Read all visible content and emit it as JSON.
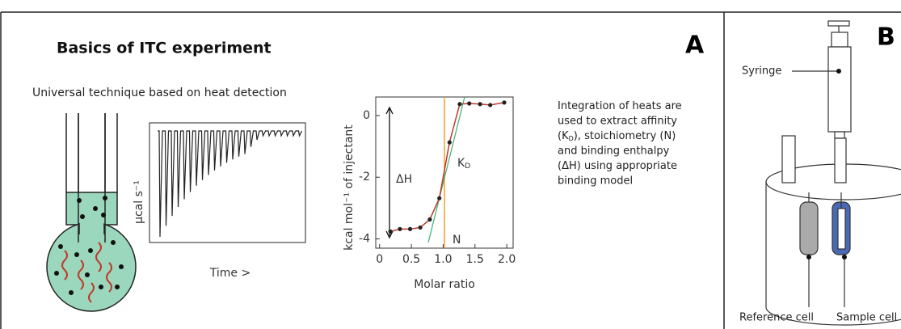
{
  "panel_a": {
    "title": "Basics of ITC experiment",
    "letter": "A",
    "subtitle": "Universal technique based on heat detection",
    "thermogram": {
      "y_label": "µcal s⁻¹",
      "x_label": "Time >"
    },
    "titration_plot": {
      "y_label": "kcal mol⁻¹ of injectant",
      "x_label": "Molar ratio",
      "xlim": [
        -0.06,
        2.1
      ],
      "ylim": [
        -4.3,
        0.6
      ],
      "xticks": [
        0,
        0.5,
        {
          "value": 1,
          "label": "1.0"
        },
        1.5,
        {
          "value": 2,
          "label": "2.0"
        }
      ],
      "yticks": [
        0,
        -2,
        -4
      ],
      "x": [
        0.17,
        0.32,
        0.48,
        0.64,
        0.79,
        0.94,
        1.1,
        1.26,
        1.41,
        1.58,
        1.74,
        1.96
      ],
      "values": [
        -3.76,
        -3.68,
        -3.68,
        -3.63,
        -3.37,
        -2.68,
        -0.87,
        0.37,
        0.39,
        0.37,
        0.34,
        0.42
      ],
      "n_line": 1.02,
      "dh_label": "ΔH",
      "kd_label": {
        "main": "K",
        "sub": "D"
      },
      "n_label": "N"
    },
    "paragraph": [
      [
        "Integration of heats are"
      ],
      [
        "used to extract affinity"
      ],
      [
        "(K",
        "D",
        "), stoichiometry (N)"
      ],
      [
        "and binding enthalpy"
      ],
      [
        "(ΔH) using appropriate"
      ],
      [
        "binding model"
      ]
    ]
  },
  "panel_b": {
    "letter": "B",
    "syringe": "Syringe",
    "reference_cell": "Reference cell",
    "sample_cell": "Sample cell"
  }
}
